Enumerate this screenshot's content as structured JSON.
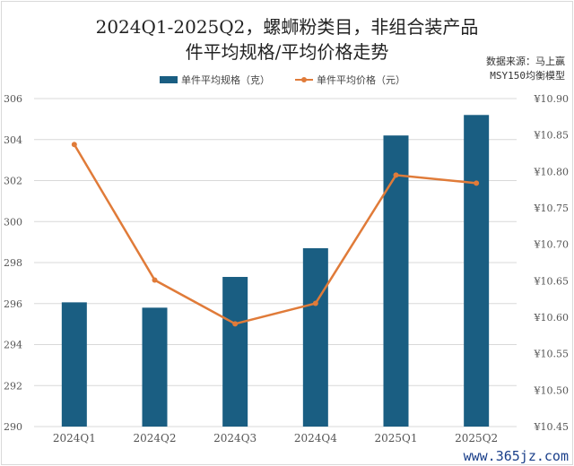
{
  "chart_data": {
    "type": "bar+line",
    "title_line1": "2024Q1-2025Q2，螺蛳粉类目，非组合装产品",
    "title_line2": "件平均规格/平均价格走势",
    "source_line1": "数据来源：马上赢",
    "source_line2": "MSY150均衡模型",
    "categories": [
      "2024Q1",
      "2024Q2",
      "2024Q3",
      "2024Q4",
      "2025Q1",
      "2025Q2"
    ],
    "series": [
      {
        "name": "单件平均规格（克）",
        "type": "bar",
        "axis": "left",
        "color": "#1a5e82",
        "values": [
          296.06,
          295.8,
          297.3,
          298.7,
          304.2,
          305.2
        ]
      },
      {
        "name": "单件平均价格（元）",
        "type": "line",
        "axis": "right",
        "color": "#e07b39",
        "values": [
          10.837,
          10.651,
          10.591,
          10.619,
          10.795,
          10.784
        ]
      }
    ],
    "y_left": {
      "range": [
        290,
        306
      ],
      "ticks": [
        "290",
        "292",
        "294",
        "296",
        "298",
        "300",
        "302",
        "304",
        "306"
      ]
    },
    "y_right": {
      "range": [
        10.45,
        10.9
      ],
      "ticks": [
        "¥10.45",
        "¥10.50",
        "¥10.55",
        "¥10.60",
        "¥10.65",
        "¥10.70",
        "¥10.75",
        "¥10.80",
        "¥10.85",
        "¥10.90"
      ]
    },
    "grid": true,
    "legend": "top",
    "watermark": "www.365jz.com"
  }
}
